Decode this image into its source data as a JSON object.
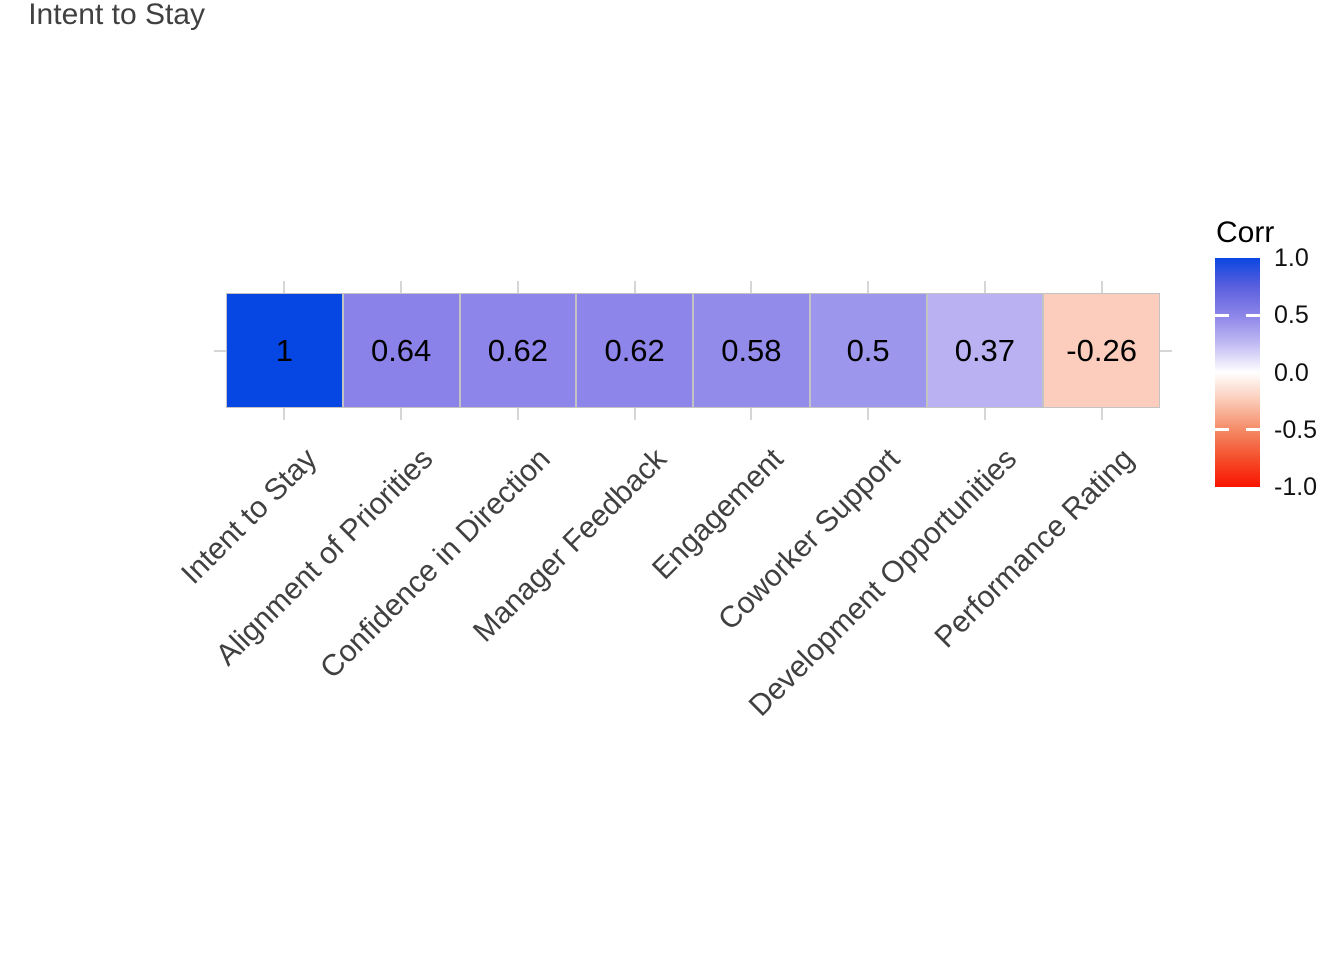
{
  "background_color": "#ffffff",
  "chart_data": {
    "type": "heatmap",
    "title": "",
    "row_label": "Intent to Stay",
    "columns": [
      "Intent to Stay",
      "Alignment of Priorities",
      "Confidence in Direction",
      "Manager Feedback",
      "Engagement",
      "Coworker Support",
      "Development Opportunities",
      "Performance Rating"
    ],
    "values": [
      1,
      0.64,
      0.62,
      0.62,
      0.58,
      0.5,
      0.37,
      -0.26
    ],
    "value_labels": [
      "1",
      "0.64",
      "0.62",
      "0.62",
      "0.58",
      "0.5",
      "0.37",
      "-0.26"
    ],
    "cell_colors": [
      "#0646e2",
      "#8a82e8",
      "#8d85e9",
      "#8d85e9",
      "#928bea",
      "#9d96ed",
      "#bab1f3",
      "#fccdbd"
    ],
    "x_label_angle_deg": -45,
    "grid": true,
    "gridline_color": "#d6d6d6",
    "cell_border_color": "#c3c3c3",
    "axis_text_color": "#404040",
    "value_text_color": "#000000",
    "legend": {
      "title": "Corr",
      "position": "right",
      "range": [
        -1,
        1
      ],
      "tick_labels": [
        "1.0",
        "0.5",
        "0.0",
        "-0.5",
        "-1.0"
      ],
      "tick_values": [
        1.0,
        0.5,
        0.0,
        -0.5,
        -1.0
      ],
      "notch_values": [
        0.5,
        -0.5
      ],
      "gradient_stops": [
        {
          "pos": 0.0,
          "color": "#0b46e2"
        },
        {
          "pos": 0.125,
          "color": "#5a5fdd"
        },
        {
          "pos": 0.25,
          "color": "#8c85e9"
        },
        {
          "pos": 0.375,
          "color": "#c1bbf3"
        },
        {
          "pos": 0.5,
          "color": "#ffffff"
        },
        {
          "pos": 0.625,
          "color": "#fbc9b5"
        },
        {
          "pos": 0.75,
          "color": "#f58a66"
        },
        {
          "pos": 0.875,
          "color": "#f54e2b"
        },
        {
          "pos": 1.0,
          "color": "#f91400"
        }
      ]
    }
  }
}
